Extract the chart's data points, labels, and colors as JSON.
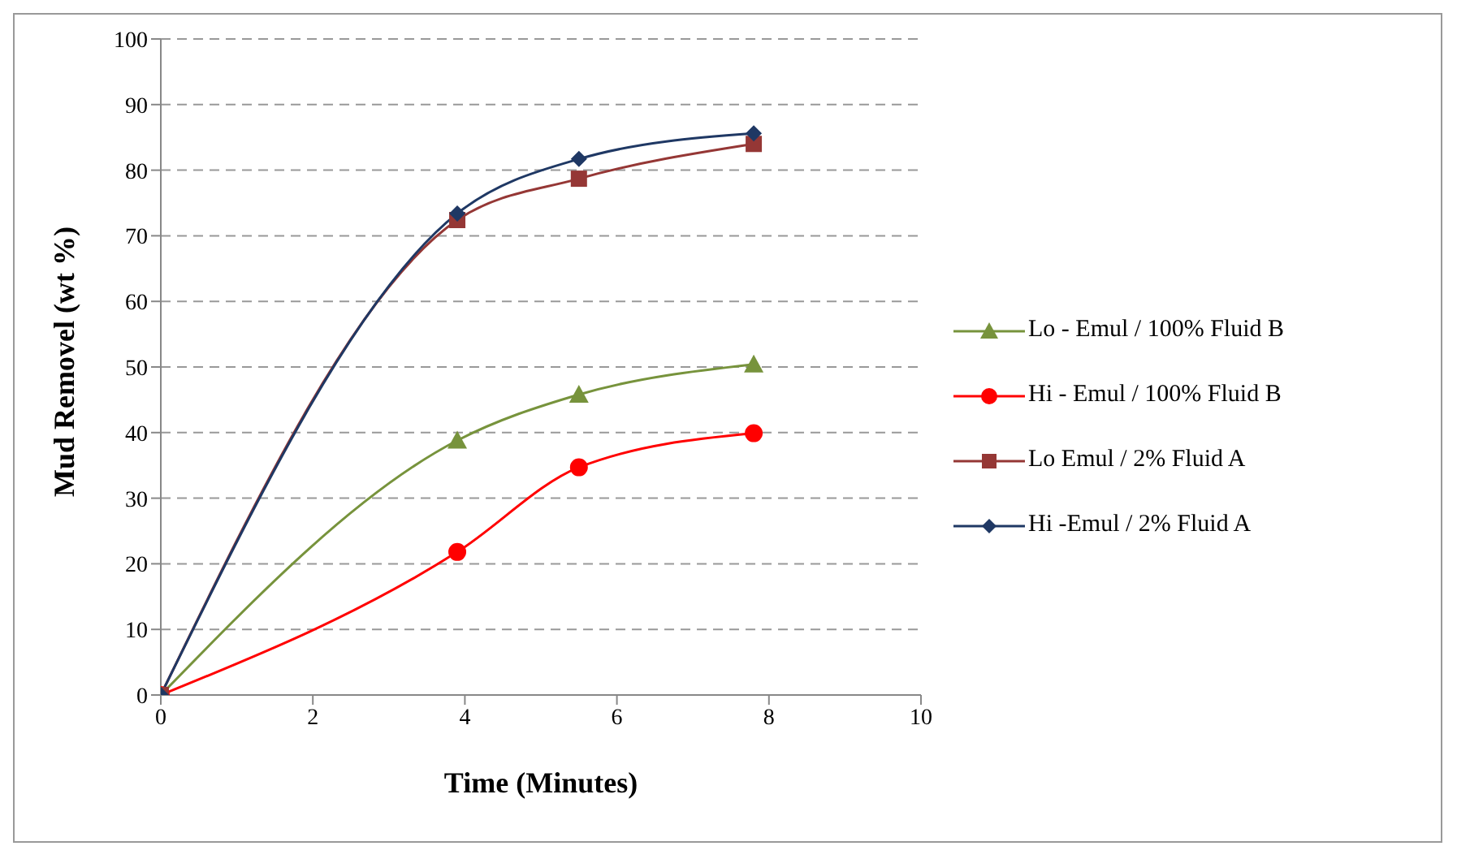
{
  "chart_data": {
    "type": "line",
    "xlabel": "Time (Minutes)",
    "ylabel": "Mud Removel (wt %)",
    "x": [
      0,
      3.9,
      5.5,
      7.8
    ],
    "series": [
      {
        "name": "Lo - Emul / 100% Fluid B",
        "color": "#77933c",
        "marker": "triangle",
        "values": [
          0,
          38.8,
          45.8,
          50.4
        ]
      },
      {
        "name": "Hi - Emul / 100% Fluid B",
        "color": "#ff0000",
        "marker": "circle",
        "values": [
          0,
          21.8,
          34.7,
          39.9
        ]
      },
      {
        "name": "Lo Emul / 2% Fluid A",
        "color": "#953735",
        "marker": "square",
        "values": [
          0,
          72.4,
          78.7,
          84
        ]
      },
      {
        "name": "Hi -Emul / 2% Fluid A",
        "color": "#1f3864",
        "marker": "diamond",
        "values": [
          0,
          73.4,
          81.7,
          85.6
        ]
      }
    ],
    "xlim": [
      0,
      10
    ],
    "xticks": [
      0,
      2,
      4,
      6,
      8,
      10
    ],
    "ylim": [
      0,
      100
    ],
    "yticks": [
      0,
      10,
      20,
      30,
      40,
      50,
      60,
      70,
      80,
      90,
      100
    ],
    "grid": "y",
    "legend": "right",
    "line_style": "solid"
  }
}
